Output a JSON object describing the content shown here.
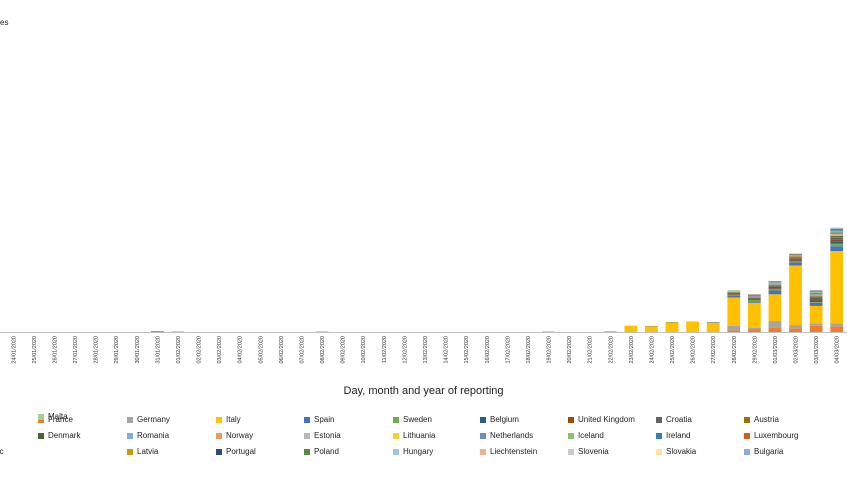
{
  "chart_data": {
    "type": "bar",
    "stacked": true,
    "title": "",
    "ylabel_fragment": "es",
    "xlabel": "Day, month and year of reporting",
    "ylim": [
      0,
      1000
    ],
    "grid": false,
    "legend_position": "bottom",
    "categories": [
      "24/01/2020",
      "25/01/2020",
      "26/01/2020",
      "27/01/2020",
      "28/01/2020",
      "29/01/2020",
      "30/01/2020",
      "31/01/2020",
      "01/02/2020",
      "02/02/2020",
      "03/02/2020",
      "04/02/2020",
      "05/02/2020",
      "06/02/2020",
      "07/02/2020",
      "08/02/2020",
      "09/02/2020",
      "10/02/2020",
      "11/02/2020",
      "12/02/2020",
      "13/02/2020",
      "14/02/2020",
      "15/02/2020",
      "16/02/2020",
      "17/02/2020",
      "18/02/2020",
      "19/02/2020",
      "20/02/2020",
      "21/02/2020",
      "22/02/2020",
      "23/02/2020",
      "24/02/2020",
      "25/02/2020",
      "26/02/2020",
      "27/02/2020",
      "28/02/2020",
      "29/02/2020",
      "01/03/2020",
      "02/03/2020",
      "03/03/2020",
      "04/03/2020"
    ],
    "series": [
      {
        "name": "France",
        "color": "#ED7D31",
        "values": [
          0,
          0,
          0,
          0,
          0,
          0,
          0,
          0,
          0,
          0,
          0,
          0,
          0,
          0,
          0,
          0,
          0,
          0,
          0,
          0,
          0,
          0,
          0,
          0,
          0,
          0,
          0,
          0,
          0,
          0,
          0,
          0,
          0,
          0,
          0,
          5,
          8,
          15,
          12,
          20,
          18
        ]
      },
      {
        "name": "Germany",
        "color": "#A5A5A5",
        "values": [
          0,
          0,
          0,
          0,
          0,
          0,
          0,
          0,
          0,
          0,
          0,
          0,
          0,
          0,
          0,
          0,
          0,
          0,
          0,
          0,
          0,
          0,
          0,
          0,
          0,
          0,
          0,
          0,
          0,
          0,
          0,
          0,
          0,
          0,
          0,
          15,
          5,
          20,
          10,
          8,
          10
        ]
      },
      {
        "name": "Italy",
        "color": "#FFC000",
        "values": [
          0,
          0,
          0,
          0,
          0,
          0,
          0,
          0,
          0,
          0,
          0,
          0,
          0,
          0,
          0,
          0,
          0,
          0,
          0,
          0,
          0,
          0,
          0,
          0,
          0,
          0,
          0,
          0,
          0,
          3,
          20,
          18,
          30,
          32,
          28,
          90,
          80,
          85,
          190,
          55,
          230
        ]
      },
      {
        "name": "Spain",
        "color": "#4472C4",
        "values": [
          0,
          0,
          0,
          0,
          0,
          0,
          0,
          0,
          0,
          0,
          0,
          0,
          0,
          0,
          0,
          0,
          0,
          0,
          0,
          0,
          0,
          0,
          0,
          0,
          0,
          0,
          0,
          0,
          0,
          0,
          0,
          0,
          0,
          0,
          0,
          6,
          4,
          12,
          10,
          10,
          15
        ]
      },
      {
        "name": "Sweden",
        "color": "#70AD47",
        "values": [
          0,
          0,
          0,
          0,
          0,
          0,
          0,
          0,
          0,
          0,
          0,
          0,
          0,
          0,
          0,
          0,
          0,
          0,
          0,
          0,
          0,
          0,
          0,
          0,
          0,
          0,
          0,
          0,
          0,
          0,
          0,
          0,
          2,
          1,
          2,
          3,
          5,
          4,
          3,
          2,
          8
        ]
      },
      {
        "name": "Belgium",
        "color": "#255E91",
        "values": [
          0,
          0,
          0,
          0,
          0,
          0,
          0,
          0,
          0,
          0,
          0,
          0,
          0,
          0,
          0,
          0,
          0,
          0,
          0,
          0,
          0,
          0,
          0,
          0,
          0,
          0,
          0,
          0,
          0,
          0,
          0,
          0,
          0,
          0,
          0,
          0,
          0,
          2,
          0,
          5,
          8
        ]
      },
      {
        "name": "United Kingdom",
        "color": "#9E480E",
        "values": [
          0,
          0,
          0,
          0,
          0,
          0,
          0,
          2,
          1,
          0,
          0,
          0,
          0,
          0,
          0,
          1,
          0,
          0,
          0,
          0,
          0,
          0,
          0,
          0,
          0,
          0,
          0,
          0,
          0,
          0,
          0,
          0,
          0,
          0,
          0,
          2,
          3,
          6,
          4,
          5,
          5
        ]
      },
      {
        "name": "Croatia",
        "color": "#636363",
        "values": [
          0,
          0,
          0,
          0,
          0,
          0,
          0,
          0,
          0,
          0,
          0,
          0,
          0,
          0,
          0,
          0,
          0,
          0,
          0,
          0,
          0,
          0,
          0,
          0,
          0,
          0,
          1,
          0,
          0,
          0,
          0,
          1,
          0,
          0,
          1,
          4,
          3,
          3,
          6,
          6,
          6
        ]
      },
      {
        "name": "Austria",
        "color": "#997300",
        "values": [
          0,
          0,
          0,
          0,
          0,
          0,
          0,
          0,
          0,
          0,
          0,
          0,
          0,
          0,
          0,
          0,
          0,
          0,
          0,
          0,
          0,
          0,
          0,
          0,
          0,
          0,
          0,
          0,
          0,
          0,
          0,
          0,
          0,
          0,
          0,
          1,
          2,
          3,
          3,
          2,
          3
        ]
      },
      {
        "name": "Denmark",
        "color": "#43682B",
        "values": [
          0,
          0,
          0,
          0,
          0,
          0,
          0,
          0,
          0,
          0,
          0,
          0,
          0,
          0,
          0,
          0,
          0,
          0,
          0,
          0,
          0,
          0,
          0,
          0,
          0,
          0,
          0,
          0,
          0,
          0,
          0,
          0,
          0,
          0,
          0,
          1,
          0,
          1,
          2,
          1,
          3
        ]
      },
      {
        "name": "Romania",
        "color": "#7CAFDD",
        "values": [
          0,
          0,
          0,
          0,
          0,
          0,
          0,
          0,
          0,
          0,
          0,
          0,
          0,
          0,
          0,
          0,
          0,
          0,
          0,
          0,
          0,
          0,
          0,
          0,
          0,
          0,
          0,
          0,
          0,
          0,
          0,
          0,
          0,
          0,
          0,
          1,
          1,
          1,
          0,
          0,
          2
        ]
      },
      {
        "name": "Norway",
        "color": "#F1975A",
        "values": [
          0,
          0,
          0,
          0,
          0,
          0,
          0,
          0,
          0,
          0,
          0,
          0,
          0,
          0,
          0,
          0,
          0,
          0,
          0,
          0,
          0,
          0,
          0,
          0,
          0,
          0,
          0,
          0,
          0,
          0,
          0,
          0,
          0,
          0,
          0,
          2,
          2,
          3,
          3,
          5,
          3
        ]
      },
      {
        "name": "Estonia",
        "color": "#B7B7B7",
        "values": [
          0,
          0,
          0,
          0,
          0,
          0,
          0,
          0,
          0,
          0,
          0,
          0,
          0,
          0,
          0,
          0,
          0,
          0,
          0,
          0,
          0,
          0,
          0,
          0,
          0,
          0,
          0,
          0,
          0,
          0,
          0,
          0,
          0,
          0,
          0,
          0,
          0,
          0,
          0,
          0,
          1
        ]
      },
      {
        "name": "Lithuania",
        "color": "#FFCD33",
        "values": [
          0,
          0,
          0,
          0,
          0,
          0,
          0,
          0,
          0,
          0,
          0,
          0,
          0,
          0,
          0,
          0,
          0,
          0,
          0,
          0,
          0,
          0,
          0,
          0,
          0,
          0,
          0,
          0,
          0,
          0,
          0,
          0,
          0,
          0,
          0,
          1,
          0,
          0,
          0,
          0,
          0
        ]
      },
      {
        "name": "Netherlands",
        "color": "#698ED0",
        "values": [
          0,
          0,
          0,
          0,
          0,
          0,
          0,
          0,
          0,
          0,
          0,
          0,
          0,
          0,
          0,
          0,
          0,
          0,
          0,
          0,
          0,
          0,
          0,
          0,
          0,
          0,
          0,
          0,
          0,
          0,
          0,
          0,
          0,
          0,
          1,
          1,
          5,
          3,
          2,
          6,
          5
        ]
      },
      {
        "name": "Iceland",
        "color": "#8CC168",
        "values": [
          0,
          0,
          0,
          0,
          0,
          0,
          0,
          0,
          0,
          0,
          0,
          0,
          0,
          0,
          0,
          0,
          0,
          0,
          0,
          0,
          0,
          0,
          0,
          0,
          0,
          0,
          0,
          0,
          0,
          0,
          0,
          0,
          0,
          0,
          0,
          1,
          0,
          1,
          1,
          2,
          6
        ]
      },
      {
        "name": "Ireland",
        "color": "#327DC2",
        "values": [
          0,
          0,
          0,
          0,
          0,
          0,
          0,
          0,
          0,
          0,
          0,
          0,
          0,
          0,
          0,
          0,
          0,
          0,
          0,
          0,
          0,
          0,
          0,
          0,
          0,
          0,
          0,
          0,
          0,
          0,
          0,
          0,
          0,
          0,
          0,
          0,
          1,
          0,
          0,
          1,
          4
        ]
      },
      {
        "name": "Luxembourg",
        "color": "#D26012",
        "values": [
          0,
          0,
          0,
          0,
          0,
          0,
          0,
          0,
          0,
          0,
          0,
          0,
          0,
          0,
          0,
          0,
          0,
          0,
          0,
          0,
          0,
          0,
          0,
          0,
          0,
          0,
          0,
          0,
          0,
          0,
          0,
          0,
          0,
          0,
          0,
          0,
          1,
          0,
          0,
          0,
          0
        ]
      },
      {
        "name": "Czech Republic",
        "color": "#848484",
        "values": [
          0,
          0,
          0,
          0,
          0,
          0,
          0,
          0,
          0,
          0,
          0,
          0,
          0,
          0,
          0,
          0,
          0,
          0,
          0,
          0,
          0,
          0,
          0,
          0,
          0,
          0,
          0,
          0,
          0,
          0,
          0,
          0,
          0,
          0,
          0,
          0,
          0,
          3,
          0,
          2,
          0
        ]
      },
      {
        "name": "Latvia",
        "color": "#CC9A00",
        "values": [
          0,
          0,
          0,
          0,
          0,
          0,
          0,
          0,
          0,
          0,
          0,
          0,
          0,
          0,
          0,
          0,
          0,
          0,
          0,
          0,
          0,
          0,
          0,
          0,
          0,
          0,
          0,
          0,
          0,
          0,
          0,
          0,
          0,
          0,
          0,
          0,
          0,
          0,
          1,
          0,
          0
        ]
      },
      {
        "name": "Portugal",
        "color": "#2F4B7C",
        "values": [
          0,
          0,
          0,
          0,
          0,
          0,
          0,
          0,
          0,
          0,
          0,
          0,
          0,
          0,
          0,
          0,
          0,
          0,
          0,
          0,
          0,
          0,
          0,
          0,
          0,
          0,
          0,
          0,
          0,
          0,
          0,
          0,
          0,
          0,
          0,
          0,
          0,
          0,
          2,
          2,
          1
        ]
      },
      {
        "name": "Poland",
        "color": "#5A8A39",
        "values": [
          0,
          0,
          0,
          0,
          0,
          0,
          0,
          0,
          0,
          0,
          0,
          0,
          0,
          0,
          0,
          0,
          0,
          0,
          0,
          0,
          0,
          0,
          0,
          0,
          0,
          0,
          0,
          0,
          0,
          0,
          0,
          0,
          0,
          0,
          0,
          0,
          0,
          0,
          0,
          0,
          1
        ]
      },
      {
        "name": "Hungary",
        "color": "#9DC3E6",
        "values": [
          0,
          0,
          0,
          0,
          0,
          0,
          0,
          0,
          0,
          0,
          0,
          0,
          0,
          0,
          0,
          0,
          0,
          0,
          0,
          0,
          0,
          0,
          0,
          0,
          0,
          0,
          0,
          0,
          0,
          0,
          0,
          0,
          0,
          0,
          0,
          0,
          0,
          0,
          0,
          0,
          2
        ]
      },
      {
        "name": "Liechtenstein",
        "color": "#F4B183",
        "values": [
          0,
          0,
          0,
          0,
          0,
          0,
          0,
          0,
          0,
          0,
          0,
          0,
          0,
          0,
          0,
          0,
          0,
          0,
          0,
          0,
          0,
          0,
          0,
          0,
          0,
          0,
          0,
          0,
          0,
          0,
          0,
          0,
          0,
          0,
          0,
          0,
          0,
          0,
          0,
          0,
          1
        ]
      },
      {
        "name": "Slovenia",
        "color": "#C9C9C9",
        "values": [
          0,
          0,
          0,
          0,
          0,
          0,
          0,
          0,
          0,
          0,
          0,
          0,
          0,
          0,
          0,
          0,
          0,
          0,
          0,
          0,
          0,
          0,
          0,
          0,
          0,
          0,
          0,
          0,
          0,
          0,
          0,
          0,
          0,
          0,
          0,
          0,
          0,
          0,
          0,
          0,
          1
        ]
      },
      {
        "name": "Slovakia",
        "color": "#FFE699",
        "values": [
          0,
          0,
          0,
          0,
          0,
          0,
          0,
          0,
          0,
          0,
          0,
          0,
          0,
          0,
          0,
          0,
          0,
          0,
          0,
          0,
          0,
          0,
          0,
          0,
          0,
          0,
          0,
          0,
          0,
          0,
          0,
          0,
          0,
          0,
          0,
          0,
          0,
          0,
          0,
          0,
          0
        ]
      },
      {
        "name": "Bulgaria",
        "color": "#8FAADC",
        "values": [
          0,
          0,
          0,
          0,
          0,
          0,
          0,
          0,
          0,
          0,
          0,
          0,
          0,
          0,
          0,
          0,
          0,
          0,
          0,
          0,
          0,
          0,
          0,
          0,
          0,
          0,
          0,
          0,
          0,
          0,
          0,
          0,
          0,
          0,
          0,
          0,
          0,
          0,
          0,
          0,
          0
        ]
      },
      {
        "name": "Malta",
        "color": "#A9D18E",
        "values": [
          0,
          0,
          0,
          0,
          0,
          0,
          0,
          0,
          0,
          0,
          0,
          0,
          0,
          0,
          0,
          0,
          0,
          0,
          0,
          0,
          0,
          0,
          0,
          0,
          0,
          0,
          0,
          0,
          0,
          0,
          0,
          0,
          0,
          0,
          0,
          0,
          0,
          0,
          0,
          0,
          0
        ]
      }
    ],
    "legend_labels": [
      "France",
      "Germany",
      "Italy",
      "Spain",
      "Sweden",
      "Belgium",
      "United Kingdom",
      "Croatia",
      "Austria",
      "Denmark",
      "Romania",
      "Norway",
      "Estonia",
      "Lithuania",
      "Netherlands",
      "Iceland",
      "Ireland",
      "Luxembourg",
      "lic",
      "Latvia",
      "Portugal",
      "Poland",
      "Hungary",
      "Liechtenstein",
      "Slovenia",
      "Slovakia",
      "Bulgaria",
      "Malta"
    ]
  }
}
